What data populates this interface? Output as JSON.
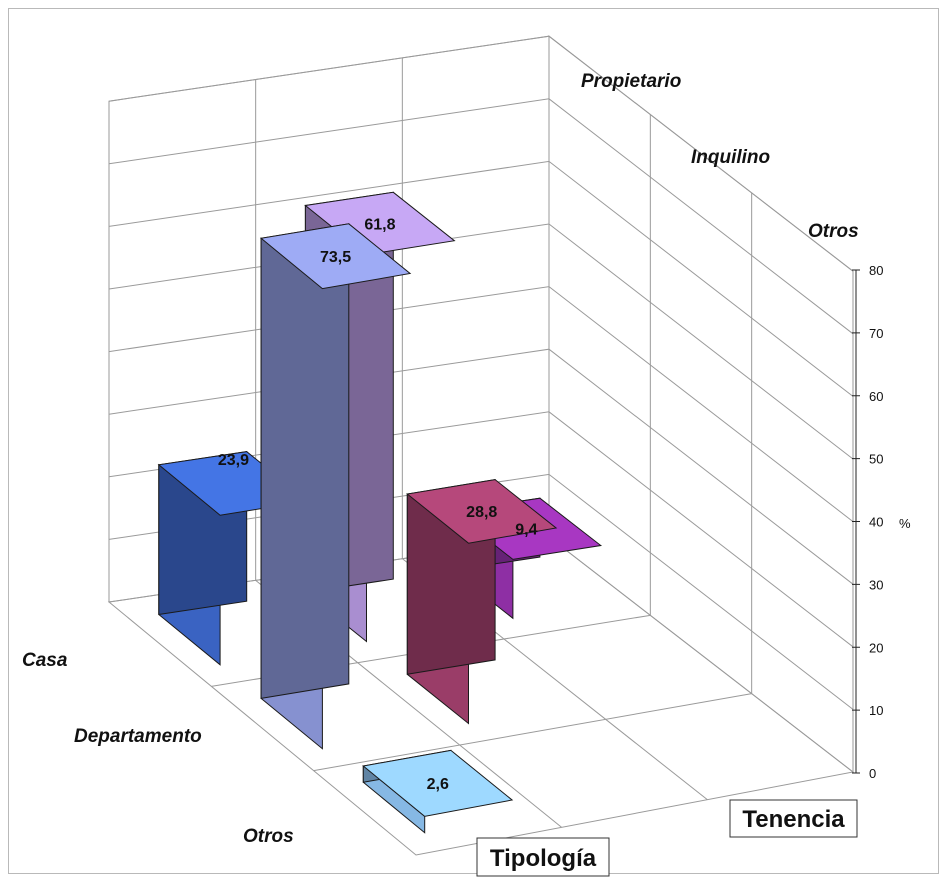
{
  "chart_data": {
    "type": "bar",
    "subtype": "3d-bar",
    "x_axis_title": "Tipología",
    "depth_axis_title": "Tenencia",
    "y_unit": "%",
    "ylim": [
      0,
      80
    ],
    "y_ticks": [
      0,
      10,
      20,
      30,
      40,
      50,
      60,
      70,
      80
    ],
    "categories": [
      "Casa",
      "Departamento",
      "Otros"
    ],
    "series": [
      {
        "name": "Propietario",
        "values": [
          23.9,
          73.5,
          2.6
        ],
        "labels": [
          "23,9",
          "73,5",
          "2,6"
        ]
      },
      {
        "name": "Inquilino",
        "values": [
          61.8,
          28.8,
          null
        ],
        "labels": [
          "61,8",
          "28,8",
          ""
        ]
      },
      {
        "name": "Otros",
        "values": [
          9.4,
          null,
          null
        ],
        "labels": [
          "9,4",
          "",
          ""
        ]
      }
    ],
    "colors": {
      "bar_11": "#3a63c2",
      "bar_21": "#8691d0",
      "bar_31": "#86b8e4",
      "bar_12": "#a98ed0",
      "bar_22": "#9a3d68",
      "bar_13": "#8e2fa4"
    },
    "grid": true
  }
}
